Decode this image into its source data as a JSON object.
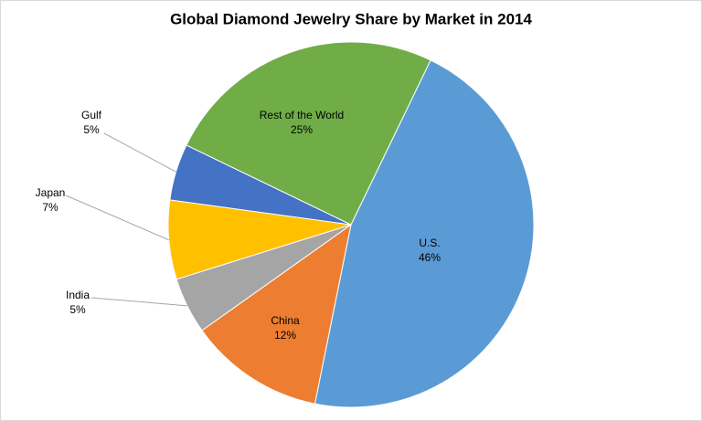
{
  "chart_data": {
    "type": "pie",
    "title": "Global Diamond Jewelry Share by Market in 2014",
    "categories": [
      "U.S.",
      "China",
      "India",
      "Japan",
      "Gulf",
      "Rest of the World"
    ],
    "values": [
      46,
      12,
      5,
      7,
      5,
      25
    ],
    "value_labels": [
      "46%",
      "12%",
      "5%",
      "7%",
      "5%",
      "25%"
    ],
    "colors": [
      "#5b9bd5",
      "#ed7d31",
      "#a5a5a5",
      "#ffc000",
      "#4472c4",
      "#70ad47"
    ]
  }
}
